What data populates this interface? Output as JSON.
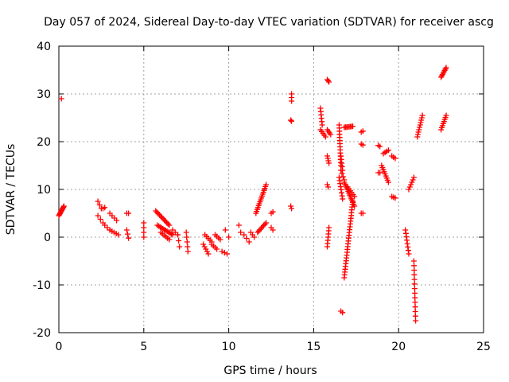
{
  "chart_data": {
    "type": "scatter",
    "title": "Day 057 of 2024, Sidereal Day-to-day VTEC variation (SDTVAR) for receiver ascg",
    "xlabel": "GPS time / hours",
    "ylabel": "SDTVAR / TECUs",
    "xlim": [
      0,
      25
    ],
    "ylim": [
      -20,
      40
    ],
    "xticks": [
      "0",
      "5",
      "10",
      "15",
      "20",
      "25"
    ],
    "yticks": [
      "-20",
      "-10",
      "0",
      "10",
      "20",
      "30",
      "40"
    ],
    "grid": true,
    "marker": "+",
    "color": "#ff0000",
    "segments": [
      {
        "x0": 0.0,
        "y0": 4.5,
        "x1": 0.3,
        "y1": 6.5,
        "n": 10
      },
      {
        "x0": 0.15,
        "y0": 29.0,
        "x1": 0.15,
        "y1": 29.0,
        "n": 1
      },
      {
        "x0": 2.3,
        "y0": 7.5,
        "x1": 2.5,
        "y1": 6.0,
        "n": 3
      },
      {
        "x0": 2.3,
        "y0": 4.5,
        "x1": 2.6,
        "y1": 3.0,
        "n": 3
      },
      {
        "x0": 2.6,
        "y0": 6.0,
        "x1": 2.7,
        "y1": 6.2,
        "n": 2
      },
      {
        "x0": 2.7,
        "y0": 2.5,
        "x1": 3.0,
        "y1": 1.5,
        "n": 3
      },
      {
        "x0": 3.0,
        "y0": 5.0,
        "x1": 3.4,
        "y1": 3.5,
        "n": 4
      },
      {
        "x0": 3.0,
        "y0": 1.5,
        "x1": 3.5,
        "y1": 0.5,
        "n": 5
      },
      {
        "x0": 4.0,
        "y0": 5.0,
        "x1": 4.1,
        "y1": 5.0,
        "n": 2
      },
      {
        "x0": 4.0,
        "y0": 1.5,
        "x1": 4.1,
        "y1": -0.2,
        "n": 3
      },
      {
        "x0": 5.0,
        "y0": 3.0,
        "x1": 5.0,
        "y1": 0.0,
        "n": 4
      },
      {
        "x0": 5.7,
        "y0": 5.5,
        "x1": 6.5,
        "y1": 2.5,
        "n": 12
      },
      {
        "x0": 5.8,
        "y0": 2.5,
        "x1": 6.7,
        "y1": 0.5,
        "n": 12
      },
      {
        "x0": 6.0,
        "y0": 1.0,
        "x1": 6.5,
        "y1": -0.5,
        "n": 6
      },
      {
        "x0": 6.7,
        "y0": 1.5,
        "x1": 7.0,
        "y1": 0.5,
        "n": 3
      },
      {
        "x0": 7.0,
        "y0": 0.5,
        "x1": 7.1,
        "y1": -2.0,
        "n": 3
      },
      {
        "x0": 7.5,
        "y0": 1.0,
        "x1": 7.6,
        "y1": -3.0,
        "n": 5
      },
      {
        "x0": 8.5,
        "y0": -1.5,
        "x1": 8.8,
        "y1": -3.5,
        "n": 5
      },
      {
        "x0": 8.6,
        "y0": 0.5,
        "x1": 9.0,
        "y1": -1.0,
        "n": 5
      },
      {
        "x0": 9.0,
        "y0": -1.5,
        "x1": 9.3,
        "y1": -2.5,
        "n": 4
      },
      {
        "x0": 9.2,
        "y0": 0.5,
        "x1": 9.5,
        "y1": -0.5,
        "n": 4
      },
      {
        "x0": 9.6,
        "y0": -3.0,
        "x1": 9.9,
        "y1": -3.5,
        "n": 3
      },
      {
        "x0": 9.8,
        "y0": 1.5,
        "x1": 10.0,
        "y1": 0.0,
        "n": 2
      },
      {
        "x0": 10.6,
        "y0": 2.5,
        "x1": 10.7,
        "y1": 1.0,
        "n": 2
      },
      {
        "x0": 10.9,
        "y0": 0.5,
        "x1": 11.2,
        "y1": -1.0,
        "n": 3
      },
      {
        "x0": 11.3,
        "y0": 1.0,
        "x1": 11.5,
        "y1": 0.0,
        "n": 3
      },
      {
        "x0": 11.6,
        "y0": 5.0,
        "x1": 12.2,
        "y1": 11.0,
        "n": 16
      },
      {
        "x0": 11.7,
        "y0": 1.0,
        "x1": 12.2,
        "y1": 3.0,
        "n": 8
      },
      {
        "x0": 12.5,
        "y0": 5.0,
        "x1": 12.6,
        "y1": 5.3,
        "n": 2
      },
      {
        "x0": 12.5,
        "y0": 2.0,
        "x1": 12.6,
        "y1": 1.5,
        "n": 2
      },
      {
        "x0": 13.7,
        "y0": 30.0,
        "x1": 13.7,
        "y1": 28.5,
        "n": 3
      },
      {
        "x0": 13.65,
        "y0": 24.5,
        "x1": 13.7,
        "y1": 24.3,
        "n": 2
      },
      {
        "x0": 13.65,
        "y0": 6.5,
        "x1": 13.7,
        "y1": 6.0,
        "n": 2
      },
      {
        "x0": 15.4,
        "y0": 27.0,
        "x1": 15.5,
        "y1": 23.5,
        "n": 6
      },
      {
        "x0": 15.4,
        "y0": 22.5,
        "x1": 15.7,
        "y1": 21.0,
        "n": 5
      },
      {
        "x0": 15.8,
        "y0": 33.0,
        "x1": 15.9,
        "y1": 32.5,
        "n": 3
      },
      {
        "x0": 15.8,
        "y0": 22.5,
        "x1": 16.0,
        "y1": 21.5,
        "n": 4
      },
      {
        "x0": 15.8,
        "y0": 17.0,
        "x1": 15.9,
        "y1": 15.5,
        "n": 4
      },
      {
        "x0": 15.8,
        "y0": 11.0,
        "x1": 15.85,
        "y1": 10.5,
        "n": 2
      },
      {
        "x0": 15.9,
        "y0": 2.0,
        "x1": 15.8,
        "y1": -2.0,
        "n": 7
      },
      {
        "x0": 16.5,
        "y0": 23.5,
        "x1": 16.6,
        "y1": 15.0,
        "n": 14
      },
      {
        "x0": 16.6,
        "y0": 17.0,
        "x1": 16.7,
        "y1": 14.0,
        "n": 5
      },
      {
        "x0": 16.5,
        "y0": 12.5,
        "x1": 16.7,
        "y1": 8.0,
        "n": 8
      },
      {
        "x0": 16.6,
        "y0": 14.0,
        "x1": 16.8,
        "y1": 12.0,
        "n": 4
      },
      {
        "x0": 16.8,
        "y0": 23.0,
        "x1": 17.3,
        "y1": 23.2,
        "n": 8
      },
      {
        "x0": 16.8,
        "y0": 11.5,
        "x1": 17.4,
        "y1": 6.5,
        "n": 14
      },
      {
        "x0": 17.0,
        "y0": 10.5,
        "x1": 17.4,
        "y1": 8.5,
        "n": 6
      },
      {
        "x0": 17.3,
        "y0": 7.5,
        "x1": 16.8,
        "y1": -8.5,
        "n": 28
      },
      {
        "x0": 16.6,
        "y0": -15.5,
        "x1": 16.7,
        "y1": -15.8,
        "n": 2
      },
      {
        "x0": 17.8,
        "y0": 22.0,
        "x1": 17.9,
        "y1": 22.2,
        "n": 2
      },
      {
        "x0": 17.8,
        "y0": 19.5,
        "x1": 17.9,
        "y1": 19.3,
        "n": 2
      },
      {
        "x0": 17.8,
        "y0": 5.0,
        "x1": 17.9,
        "y1": 5.0,
        "n": 2
      },
      {
        "x0": 18.8,
        "y0": 19.2,
        "x1": 18.9,
        "y1": 19.0,
        "n": 2
      },
      {
        "x0": 18.8,
        "y0": 13.5,
        "x1": 18.9,
        "y1": 13.5,
        "n": 2
      },
      {
        "x0": 19.0,
        "y0": 15.0,
        "x1": 19.4,
        "y1": 11.5,
        "n": 9
      },
      {
        "x0": 19.1,
        "y0": 17.5,
        "x1": 19.4,
        "y1": 18.2,
        "n": 4
      },
      {
        "x0": 19.6,
        "y0": 17.0,
        "x1": 19.8,
        "y1": 16.5,
        "n": 3
      },
      {
        "x0": 19.6,
        "y0": 8.5,
        "x1": 19.8,
        "y1": 8.2,
        "n": 3
      },
      {
        "x0": 20.4,
        "y0": 1.5,
        "x1": 20.6,
        "y1": -3.5,
        "n": 8
      },
      {
        "x0": 20.6,
        "y0": 10.0,
        "x1": 20.9,
        "y1": 12.5,
        "n": 6
      },
      {
        "x0": 20.9,
        "y0": -5.0,
        "x1": 21.0,
        "y1": -17.5,
        "n": 14
      },
      {
        "x0": 21.1,
        "y0": 21.0,
        "x1": 21.4,
        "y1": 25.5,
        "n": 10
      },
      {
        "x0": 22.5,
        "y0": 33.5,
        "x1": 22.8,
        "y1": 35.5,
        "n": 8
      },
      {
        "x0": 22.5,
        "y0": 22.5,
        "x1": 22.8,
        "y1": 25.5,
        "n": 8
      }
    ]
  }
}
